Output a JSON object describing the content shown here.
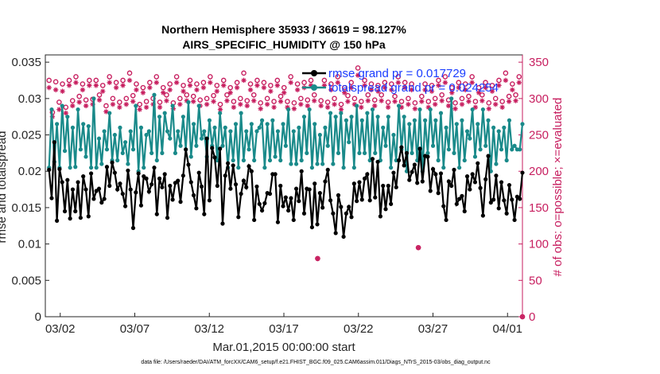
{
  "chart_data": {
    "type": "line",
    "title": "Northern Hemisphere 35933 / 36619 = 98.127%",
    "subtitle": "AIRS_SPECIFIC_HUMIDITY @ 150 hPa",
    "xlabel": "Mar.01,2015 00:00:00 start",
    "ylabel_left": "rmse and totalspread",
    "ylabel_right": "# of obs: o=possible; ×=evaluated",
    "ylim_left": [
      0,
      0.036
    ],
    "ylim_right": [
      0,
      360
    ],
    "xlim": [
      0,
      32
    ],
    "x_tick_labels": [
      "03/02",
      "03/07",
      "03/12",
      "03/17",
      "03/22",
      "03/27",
      "04/01"
    ],
    "x_tick_positions": [
      1,
      6,
      11,
      16,
      21,
      26,
      31
    ],
    "y_left_ticks": [
      "0",
      "0.005",
      "0.01",
      "0.015",
      "0.02",
      "0.025",
      "0.03",
      "0.035"
    ],
    "y_right_ticks": [
      "0",
      "50",
      "100",
      "150",
      "200",
      "250",
      "300",
      "350"
    ],
    "legend": [
      {
        "name": "rmse",
        "label": "rmse grand pr = 0.017729",
        "color": "#000000"
      },
      {
        "name": "totalspread",
        "label": "totalspread grand pr = 0.024254",
        "color": "#1a8a8a"
      }
    ],
    "series_values": {
      "rmse": [
        0.0202,
        0.0163,
        0.024,
        0.0132,
        0.0203,
        0.0185,
        0.0145,
        0.0188,
        0.0135,
        0.0175,
        0.0145,
        0.0185,
        0.0136,
        0.0193,
        0.0175,
        0.0138,
        0.0197,
        0.0162,
        0.0173,
        0.0176,
        0.0157,
        0.0162,
        0.0206,
        0.018,
        0.0212,
        0.0198,
        0.0175,
        0.0183,
        0.0169,
        0.0152,
        0.0201,
        0.0175,
        0.0122,
        0.0171,
        0.0197,
        0.0153,
        0.0193,
        0.019,
        0.0172,
        0.0182,
        0.0205,
        0.0141,
        0.019,
        0.0178,
        0.0196,
        0.0136,
        0.018,
        0.0161,
        0.0184,
        0.0187,
        0.0158,
        0.0194,
        0.023,
        0.0209,
        0.0185,
        0.0167,
        0.0149,
        0.0198,
        0.0179,
        0.0141,
        0.0245,
        0.016,
        0.0232,
        0.0219,
        0.018,
        0.0231,
        0.0128,
        0.0194,
        0.0211,
        0.0176,
        0.0208,
        0.0182,
        0.0137,
        0.0169,
        0.0187,
        0.0178,
        0.0207,
        0.02,
        0.0133,
        0.0179,
        0.0155,
        0.0146,
        0.0156,
        0.017,
        0.0169,
        0.0196,
        0.0196,
        0.013,
        0.018,
        0.0152,
        0.0164,
        0.0146,
        0.0163,
        0.0133,
        0.0176,
        0.0159,
        0.02,
        0.0142,
        0.0176,
        0.0175,
        0.0123,
        0.0183,
        0.0127,
        0.017,
        0.015,
        0.0186,
        0.0202,
        0.016,
        0.0142,
        0.0115,
        0.0167,
        0.0151,
        0.011,
        0.0142,
        0.0151,
        0.0137,
        0.0183,
        0.0159,
        0.0185,
        0.0161,
        0.019,
        0.0196,
        0.016,
        0.0217,
        0.0164,
        0.0213,
        0.0138,
        0.018,
        0.0148,
        0.018,
        0.0155,
        0.0198,
        0.0178,
        0.0215,
        0.0233,
        0.0208,
        0.0225,
        0.0188,
        0.0199,
        0.0209,
        0.0184,
        0.0231,
        0.0186,
        0.0221,
        0.022,
        0.0173,
        0.0203,
        0.0196,
        0.017,
        0.0197,
        0.0152,
        0.0133,
        0.0186,
        0.018,
        0.0202,
        0.0155,
        0.0162,
        0.0166,
        0.0145,
        0.0193,
        0.0175,
        0.0196,
        0.0185,
        0.0211,
        0.0177,
        0.0139,
        0.0189,
        0.0221,
        0.0157,
        0.0161,
        0.0194,
        0.0149,
        0.0185,
        0.016,
        0.0142,
        0.0181,
        0.0161,
        0.0133,
        0.0165,
        0.0162,
        0.0198
      ],
      "totalspread": [
        0.0205,
        0.0285,
        0.0213,
        0.0265,
        0.0205,
        0.029,
        0.0228,
        0.0275,
        0.0205,
        0.026,
        0.0206,
        0.0285,
        0.023,
        0.0265,
        0.022,
        0.0262,
        0.0205,
        0.03,
        0.0205,
        0.0245,
        0.021,
        0.0255,
        0.023,
        0.028,
        0.0215,
        0.025,
        0.0215,
        0.026,
        0.0225,
        0.024,
        0.021,
        0.0255,
        0.023,
        0.029,
        0.02,
        0.026,
        0.0205,
        0.025,
        0.0255,
        0.0225,
        0.0305,
        0.0215,
        0.0275,
        0.0225,
        0.028,
        0.0255,
        0.0245,
        0.029,
        0.0225,
        0.0255,
        0.0235,
        0.0275,
        0.023,
        0.0295,
        0.022,
        0.0265,
        0.0235,
        0.029,
        0.0245,
        0.0255,
        0.022,
        0.027,
        0.0235,
        0.026,
        0.0215,
        0.028,
        0.0235,
        0.026,
        0.0205,
        0.0255,
        0.0215,
        0.0265,
        0.0205,
        0.028,
        0.0215,
        0.0255,
        0.023,
        0.0265,
        0.0215,
        0.0255,
        0.026,
        0.027,
        0.0205,
        0.0265,
        0.0215,
        0.027,
        0.022,
        0.0255,
        0.0215,
        0.0265,
        0.0235,
        0.0285,
        0.021,
        0.0255,
        0.021,
        0.026,
        0.0215,
        0.0275,
        0.0225,
        0.0285,
        0.0205,
        0.0265,
        0.021,
        0.025,
        0.021,
        0.026,
        0.0235,
        0.028,
        0.021,
        0.0275,
        0.0225,
        0.028,
        0.0205,
        0.027,
        0.024,
        0.0275,
        0.0205,
        0.029,
        0.0225,
        0.027,
        0.0225,
        0.028,
        0.0215,
        0.0285,
        0.0225,
        0.0275,
        0.0215,
        0.026,
        0.0235,
        0.0275,
        0.0205,
        0.025,
        0.0215,
        0.029,
        0.023,
        0.0275,
        0.02,
        0.0265,
        0.0225,
        0.027,
        0.0215,
        0.0285,
        0.02,
        0.027,
        0.0225,
        0.0285,
        0.0235,
        0.027,
        0.0215,
        0.028,
        0.0205,
        0.026,
        0.023,
        0.03,
        0.0225,
        0.0265,
        0.0205,
        0.027,
        0.0215,
        0.0255,
        0.0245,
        0.0285,
        0.022,
        0.0265,
        0.023,
        0.0285,
        0.0235,
        0.027,
        0.02,
        0.026,
        0.021,
        0.0255,
        0.023,
        0.026,
        0.0215,
        0.027,
        0.023,
        0.0235,
        0.023,
        0.023,
        0.0265
      ],
      "obs_possible": [
        325,
        281,
        323,
        295,
        320,
        288,
        325,
        297,
        330,
        303,
        320,
        298,
        325,
        299,
        325,
        305,
        318,
        290,
        330,
        300,
        322,
        295,
        325,
        300,
        335,
        304,
        320,
        292,
        315,
        296,
        322,
        300,
        330,
        295,
        315,
        305,
        320,
        294,
        330,
        300,
        318,
        305,
        325,
        303,
        320,
        298,
        322,
        300,
        330,
        304,
        318,
        292,
        325,
        305,
        315,
        296,
        322,
        300,
        335,
        297,
        320,
        305,
        325,
        294,
        322,
        300,
        318,
        296,
        325,
        303,
        315,
        296,
        330,
        294,
        320,
        300,
        322,
        298,
        325,
        305,
        80,
        297,
        325,
        295,
        320,
        300,
        330,
        292,
        315,
        304,
        322,
        300,
        342,
        296,
        325,
        305,
        320,
        298,
        318,
        305,
        322,
        295,
        320,
        303,
        330,
        296,
        322,
        300,
        320,
        294,
        95,
        303,
        320,
        296,
        318,
        300,
        325,
        305,
        330,
        298,
        315,
        294,
        322,
        300,
        320,
        303,
        330,
        296,
        315,
        305,
        322,
        294,
        318,
        300,
        325,
        296,
        335,
        303,
        320,
        305,
        330,
        0
      ],
      "obs_evaluated": [
        315,
        275,
        312,
        285,
        310,
        280,
        318,
        290,
        322,
        295,
        312,
        290,
        318,
        292,
        318,
        298,
        310,
        282,
        322,
        292,
        315,
        288,
        318,
        292,
        325,
        296,
        312,
        285,
        308,
        288,
        315,
        292,
        322,
        288,
        308,
        297,
        312,
        286,
        322,
        292,
        310,
        297,
        318,
        296,
        312,
        290,
        315,
        292,
        322,
        296,
        310,
        285,
        318,
        297,
        308,
        288,
        315,
        292,
        325,
        290,
        312,
        297,
        318,
        286,
        315,
        292,
        310,
        288,
        318,
        296,
        308,
        288,
        322,
        286,
        312,
        292,
        315,
        290,
        318,
        297,
        80,
        290,
        318,
        288,
        312,
        292,
        322,
        285,
        308,
        296,
        315,
        292,
        332,
        288,
        318,
        297,
        312,
        290,
        310,
        297,
        315,
        288,
        312,
        296,
        322,
        288,
        315,
        292,
        312,
        286,
        95,
        296,
        312,
        288,
        310,
        292,
        318,
        297,
        322,
        290,
        308,
        286,
        315,
        292,
        312,
        296,
        322,
        288,
        308,
        297,
        315,
        286,
        310,
        292,
        318,
        288,
        325,
        296,
        312,
        297,
        322,
        0
      ]
    },
    "footer": "data file: /Users/raeder/DAI/ATM_forcXX/CAM6_setup/f.e21.FHIST_BGC.f09_025.CAM6assim.011/Diags_NTrS_2015-03/obs_diag_output.nc"
  }
}
